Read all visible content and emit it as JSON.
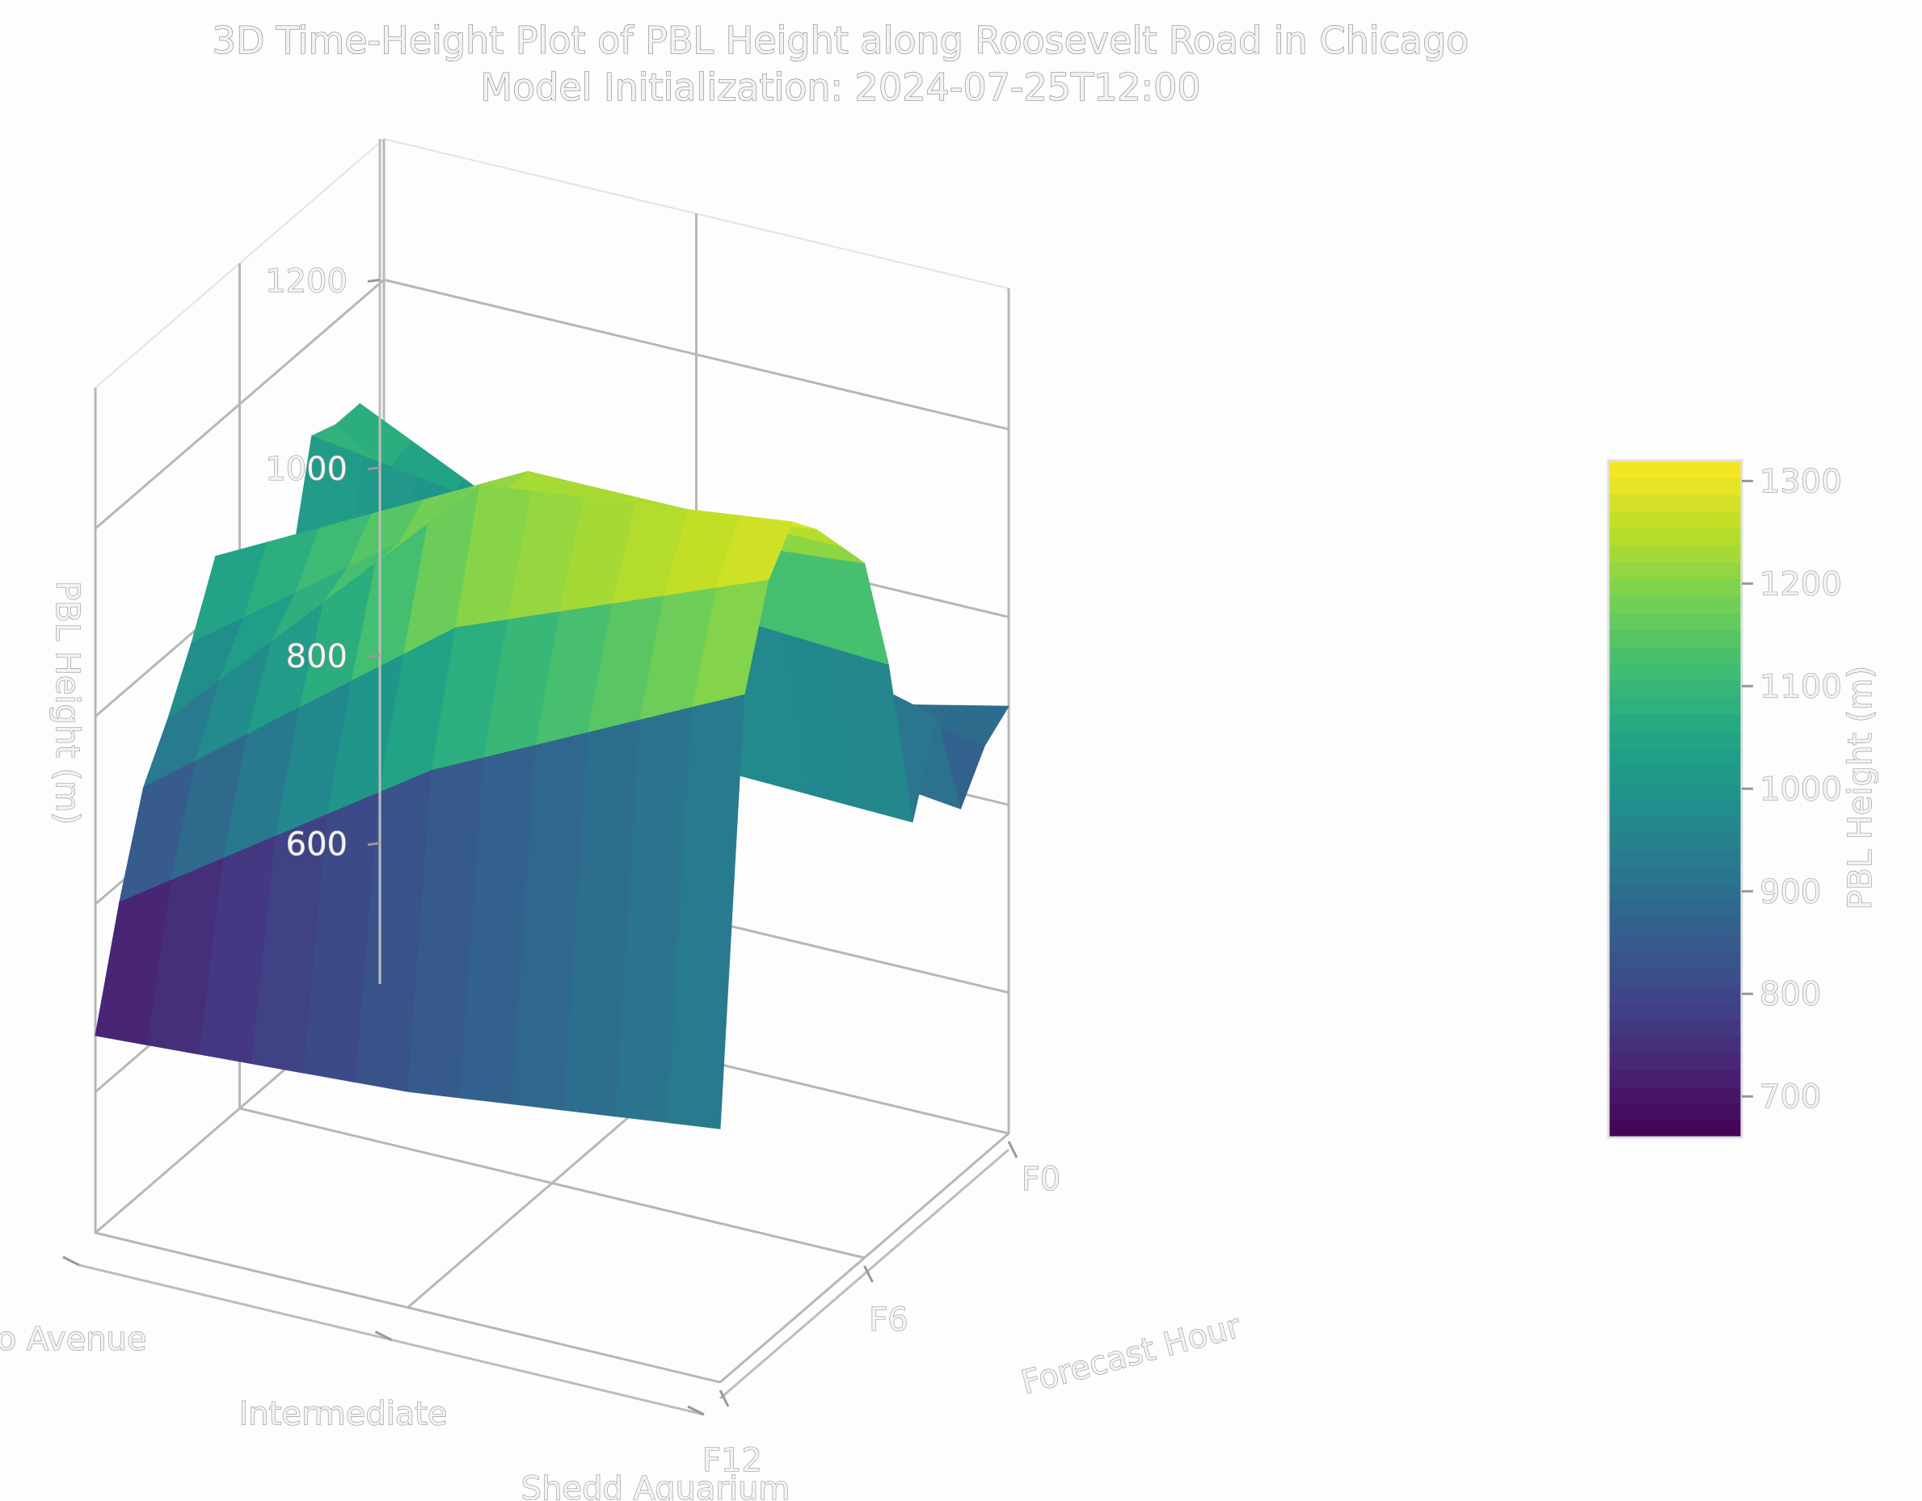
{
  "chart_data": {
    "type": "surface",
    "title": "3D Time-Height Plot of PBL Height along Roosevelt Road in Chicago",
    "subtitle": "Model Initialization: 2024-07-25T12:00",
    "xlabel": "Forecast Hour",
    "ylabel": "",
    "zlabel": "PBL Height (m)",
    "colorbar_label": "PBL Height (m)",
    "colormap": "viridis",
    "x_ticks": [
      "F0",
      "F6",
      "F12"
    ],
    "y_ticks": [
      "Cicero Avenue",
      "Intermediate",
      "Shedd Aquarium"
    ],
    "z_ticks": [
      600,
      800,
      1000,
      1200
    ],
    "zlim": [
      450,
      1350
    ],
    "colorbar_ticks": [
      700,
      800,
      900,
      1000,
      1100,
      1200,
      1300
    ],
    "colorbar_range": [
      660,
      1320
    ],
    "forecast_hours": [
      0,
      1,
      2,
      3,
      4,
      5,
      6,
      7,
      8,
      9,
      10,
      11,
      12
    ],
    "locations": [
      "Cicero Avenue",
      "Intermediate",
      "Shedd Aquarium"
    ],
    "values": [
      [
        905,
        885,
        840,
        960,
        870,
        1060,
        1190,
        1230,
        1270,
        1300,
        1260,
        1160,
        720
      ],
      [
        830,
        930,
        880,
        1050,
        880,
        1080,
        1160,
        1230,
        1230,
        1260,
        1130,
        1000,
        680
      ],
      [
        850,
        1090,
        1090,
        1100,
        960,
        1020,
        1030,
        1060,
        990,
        930,
        880,
        780,
        660
      ]
    ]
  }
}
